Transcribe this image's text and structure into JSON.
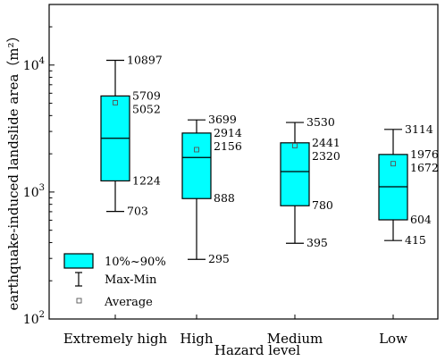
{
  "chart_data": {
    "type": "box",
    "title": "",
    "xlabel": "Hazard level",
    "ylabel": "earthquake-induced landslide area（m²）",
    "yscale": "log",
    "ylim": [
      100,
      30000
    ],
    "ytick_labels": [
      {
        "value": 100,
        "base": "10",
        "exp": "2"
      },
      {
        "value": 1000,
        "base": "10",
        "exp": "3"
      },
      {
        "value": 10000,
        "base": "10",
        "exp": "4"
      }
    ],
    "categories": [
      "Extremely  high",
      "High",
      "Medium",
      "Low"
    ],
    "box_color": "#00ffff",
    "series": [
      {
        "category": "Extremely  high",
        "min": 703,
        "p10": 1224,
        "median": 2650,
        "p90": 5709,
        "max": 10897,
        "mean": 5052,
        "labels": {
          "max": "10897",
          "p90": "5709",
          "mean": "5052",
          "p10": "1224",
          "min": "703"
        }
      },
      {
        "category": "High",
        "min": 295,
        "p10": 888,
        "median": 1870,
        "p90": 2914,
        "max": 3699,
        "mean": 2156,
        "labels": {
          "max": "3699",
          "p90": "2914",
          "mean": "2156",
          "p10": "888",
          "min": "295"
        }
      },
      {
        "category": "Medium",
        "min": 395,
        "p10": 780,
        "median": 1450,
        "p90": 2441,
        "max": 3530,
        "mean": 2320,
        "labels": {
          "max": "3530",
          "p90": "2441",
          "mean": "2320",
          "p10": "780",
          "min": "395"
        }
      },
      {
        "category": "Low",
        "min": 415,
        "p10": 604,
        "median": 1100,
        "p90": 1976,
        "max": 3114,
        "mean": 1672,
        "labels": {
          "max": "3114",
          "p90": "1976",
          "mean": "1672",
          "p10": "604",
          "min": "415"
        }
      }
    ],
    "legend": {
      "position": "bottom-left",
      "items": [
        {
          "kind": "box",
          "label": "10%~90%"
        },
        {
          "kind": "whisker",
          "label": "Max-Min"
        },
        {
          "kind": "average",
          "label": "Average"
        }
      ]
    }
  }
}
